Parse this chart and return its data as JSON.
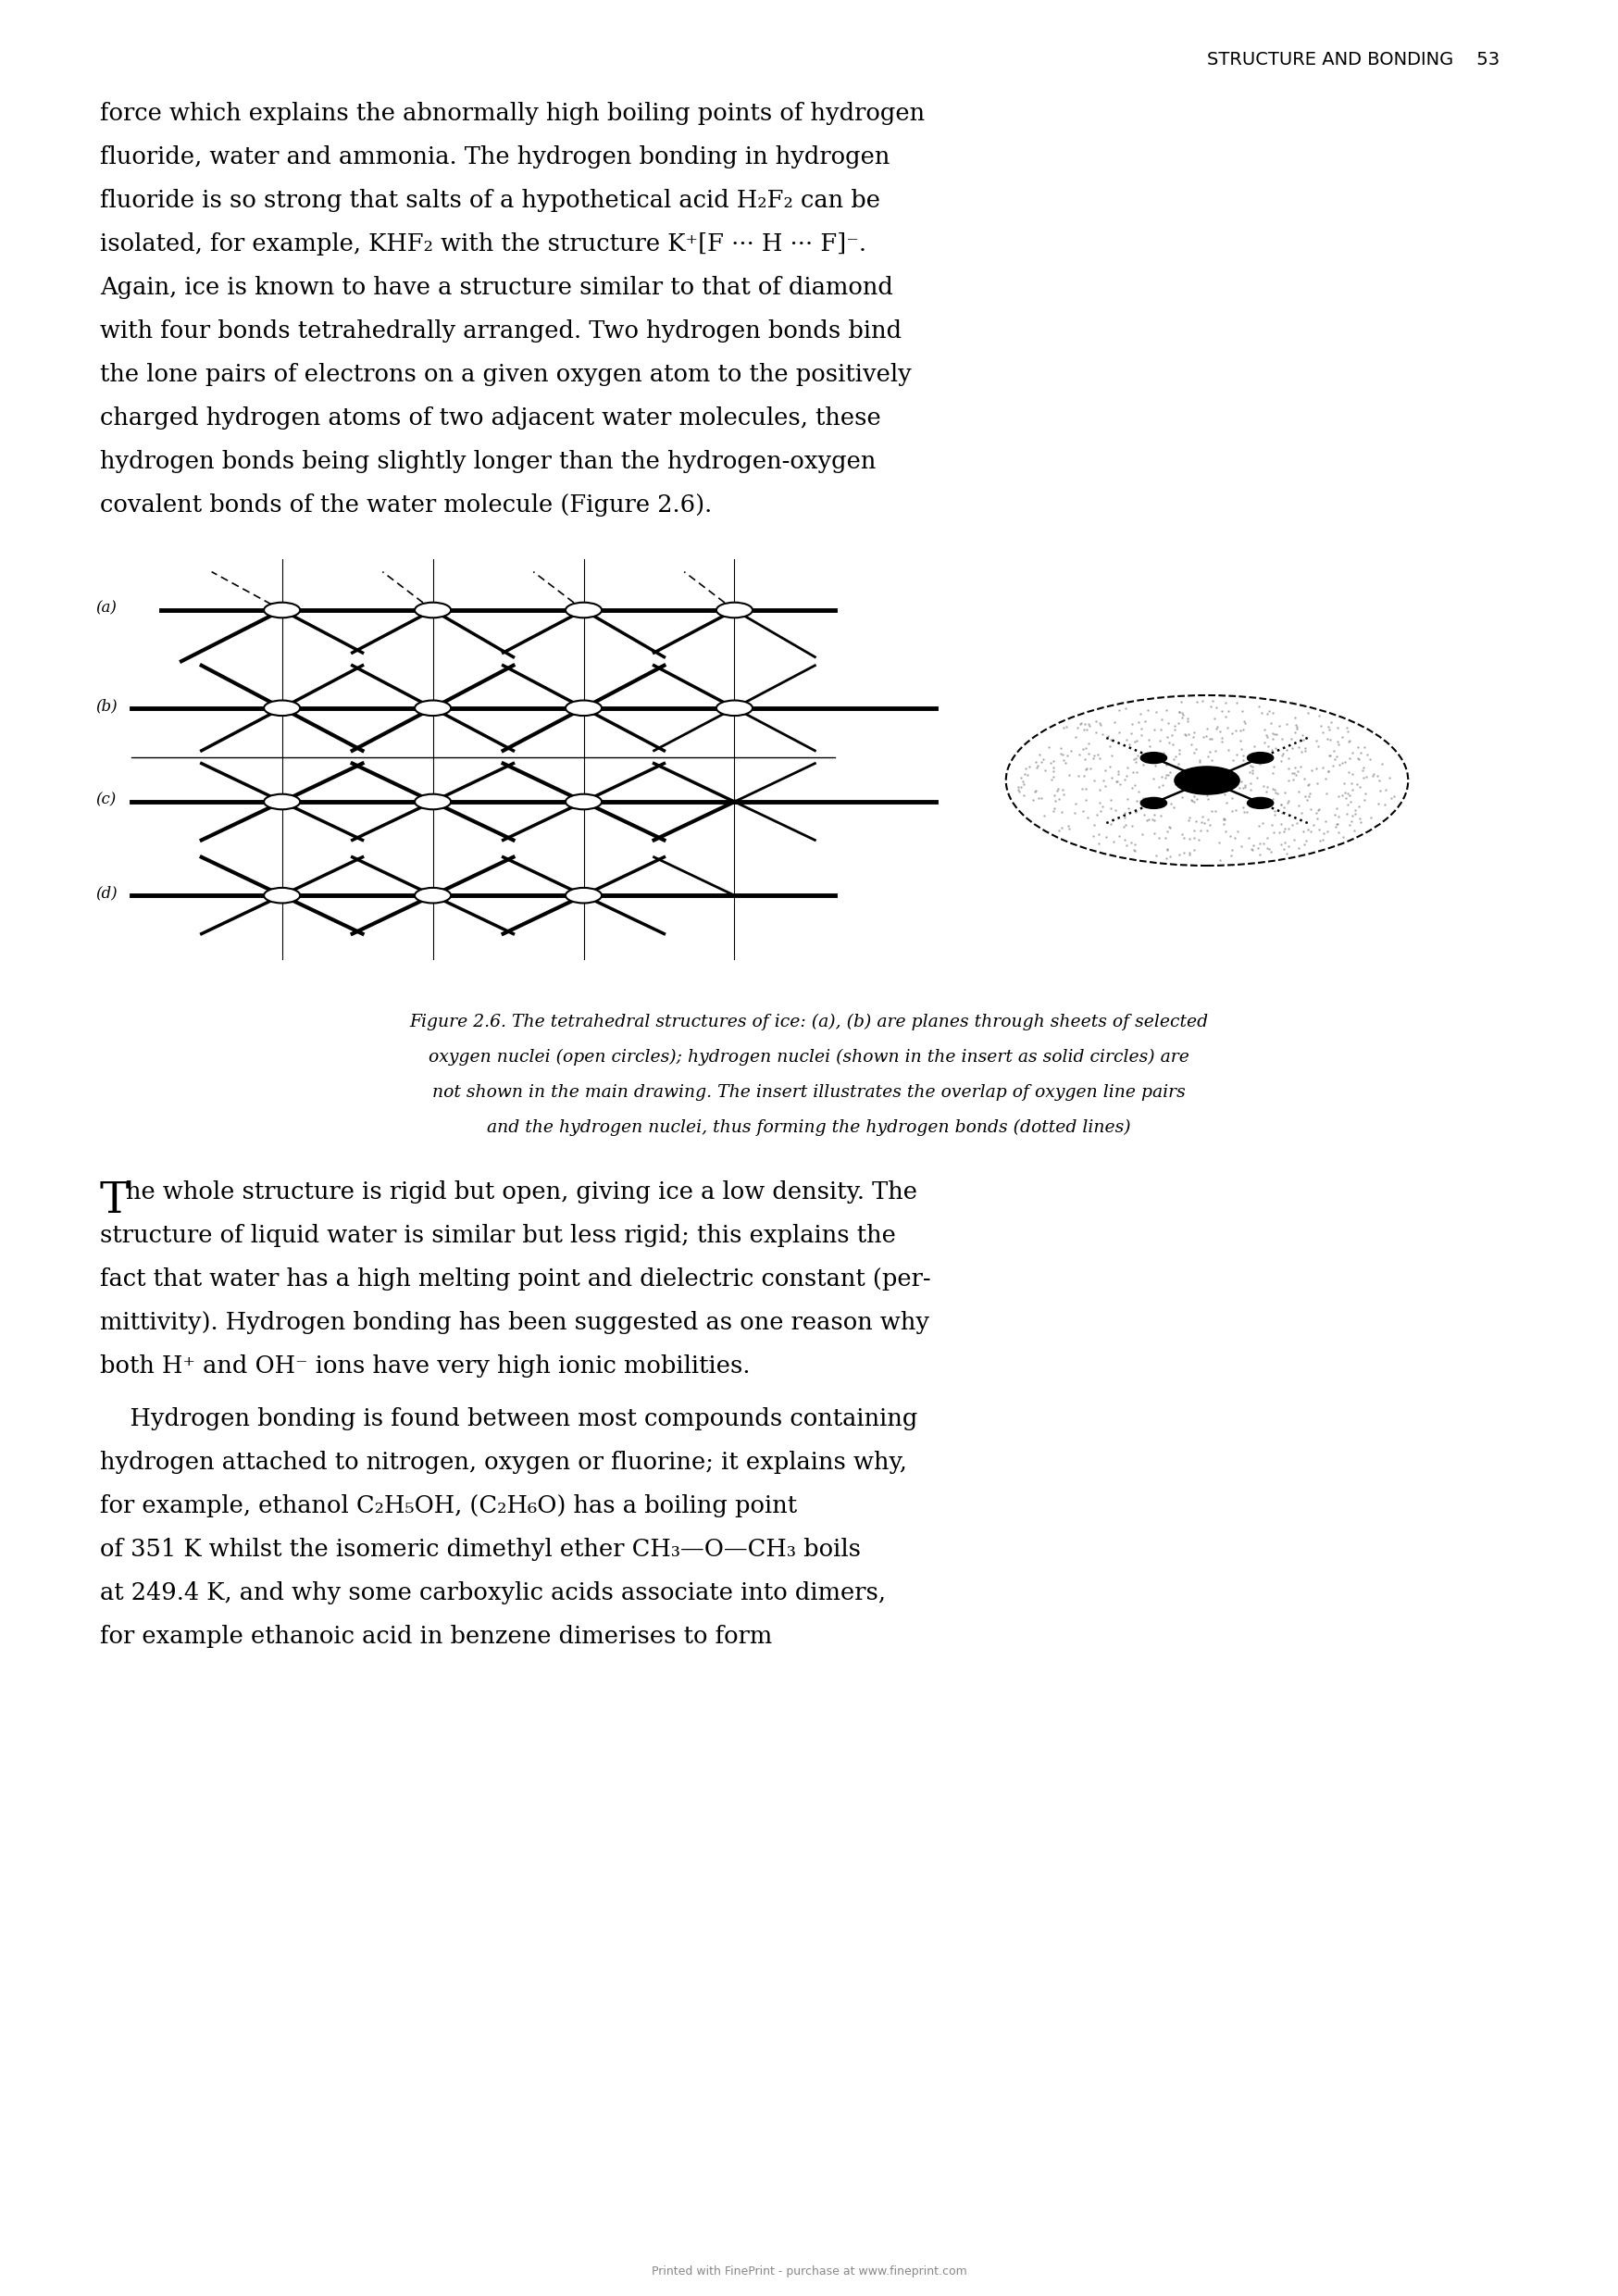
{
  "background_color": "#ffffff",
  "header_text": "STRUCTURE AND BONDING    53",
  "body1_lines": [
    "force which explains the abnormally high boiling points of hydrogen",
    "fluoride, water and ammonia. The hydrogen bonding in hydrogen",
    "fluoride is so strong that salts of a hypothetical acid H₂F₂ can be",
    "isolated, for example, KHF₂ with the structure K⁺[F ··· H ··· F]⁻.",
    "Again, ice is known to have a structure similar to that of diamond",
    "with four bonds tetrahedrally arranged. Two hydrogen bonds bind",
    "the lone pairs of electrons on a given oxygen atom to the positively",
    "charged hydrogen atoms of two adjacent water molecules, these",
    "hydrogen bonds being slightly longer than the hydrogen-oxygen",
    "covalent bonds of the water molecule (Figure 2.6)."
  ],
  "caption_lines": [
    "Figure 2.6. The tetrahedral structures of ice: (a), (b) are planes through sheets of selected",
    "oxygen nuclei (open circles); hydrogen nuclei (shown in the insert as solid circles) are",
    "not shown in the main drawing. The insert illustrates the overlap of oxygen line pairs",
    "and the hydrogen nuclei, thus forming the hydrogen bonds (dotted lines)"
  ],
  "body2_lines": [
    "The whole structure is rigid but open, giving ice a low density. The",
    "structure of liquid water is similar but less rigid; this explains the",
    "fact that water has a high melting point and dielectric constant (per-",
    "mittivity). Hydrogen bonding has been suggested as one reason why",
    "both H⁺ and OH⁻ ions have very high ionic mobilities."
  ],
  "body3_lines": [
    "    Hydrogen bonding is found between most compounds containing",
    "hydrogen attached to nitrogen, oxygen or fluorine; it explains why,",
    "for example, ethanol C₂H₅OH, (C₂H₆O) has a boiling point",
    "of 351 K whilst the isomeric dimethyl ether CH₃—O—CH₃ boils",
    "at 249.4 K, and why some carboxylic acids associate into dimers,",
    "for example ethanoic acid in benzene dimerises to form"
  ],
  "footer_text": "Printed with FinePrint - purchase at www.fineprint.com"
}
